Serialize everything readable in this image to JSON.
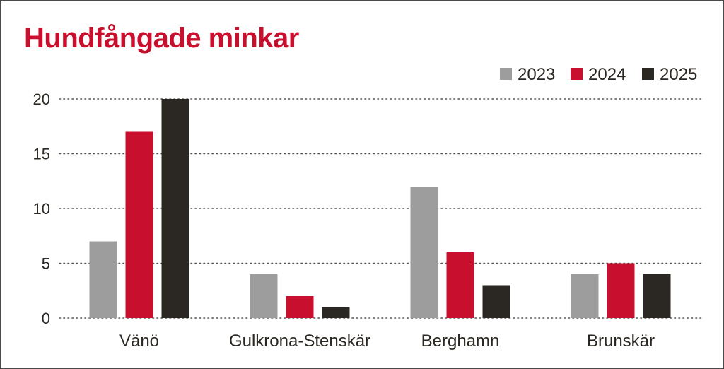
{
  "chart_data": {
    "type": "bar",
    "title": "Hundfångade minkar",
    "categories": [
      "Vänö",
      "Gulkrona-Stenskär",
      "Berghamn",
      "Brunskär"
    ],
    "series": [
      {
        "name": "2023",
        "color": "#9d9d9d",
        "values": [
          7,
          4,
          12,
          4
        ]
      },
      {
        "name": "2024",
        "color": "#c8102e",
        "values": [
          17,
          2,
          6,
          5
        ]
      },
      {
        "name": "2025",
        "color": "#2b2722",
        "values": [
          20,
          1,
          3,
          4
        ]
      }
    ],
    "yticks": [
      "0",
      "5",
      "10",
      "15",
      "20"
    ],
    "ylim": [
      0,
      20
    ],
    "grid": true,
    "legend_position": "top-right"
  },
  "colors": {
    "title": "#c8102e",
    "text": "#2b2722",
    "grid": "#555555"
  }
}
